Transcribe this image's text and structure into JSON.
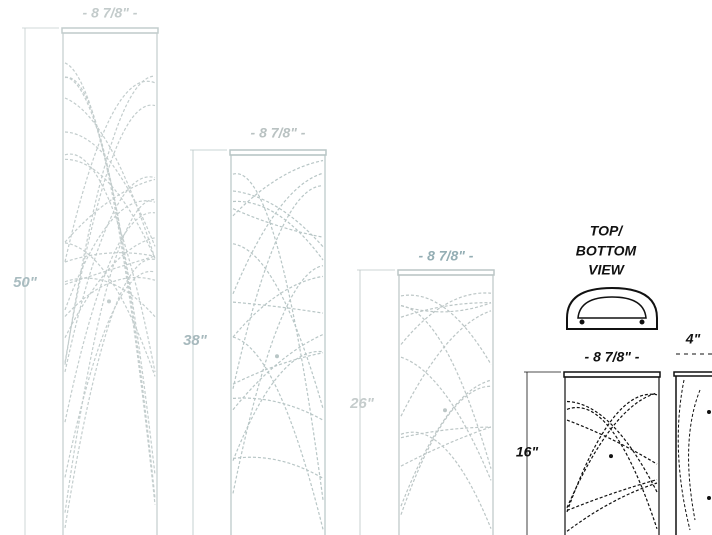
{
  "fixtures": [
    {
      "width_label": "- 8 7/8\" -",
      "height_label": "50\""
    },
    {
      "width_label": "- 8 7/8\" -",
      "height_label": "38\""
    },
    {
      "width_label": "- 8 7/8\" -",
      "height_label": "26\""
    },
    {
      "width_label": "- 8 7/8\" -",
      "height_label": "16\""
    }
  ],
  "top_view": {
    "lines": [
      "TOP/",
      "BOTTOM",
      "VIEW"
    ]
  },
  "side_view": {
    "width_label": "4\""
  }
}
